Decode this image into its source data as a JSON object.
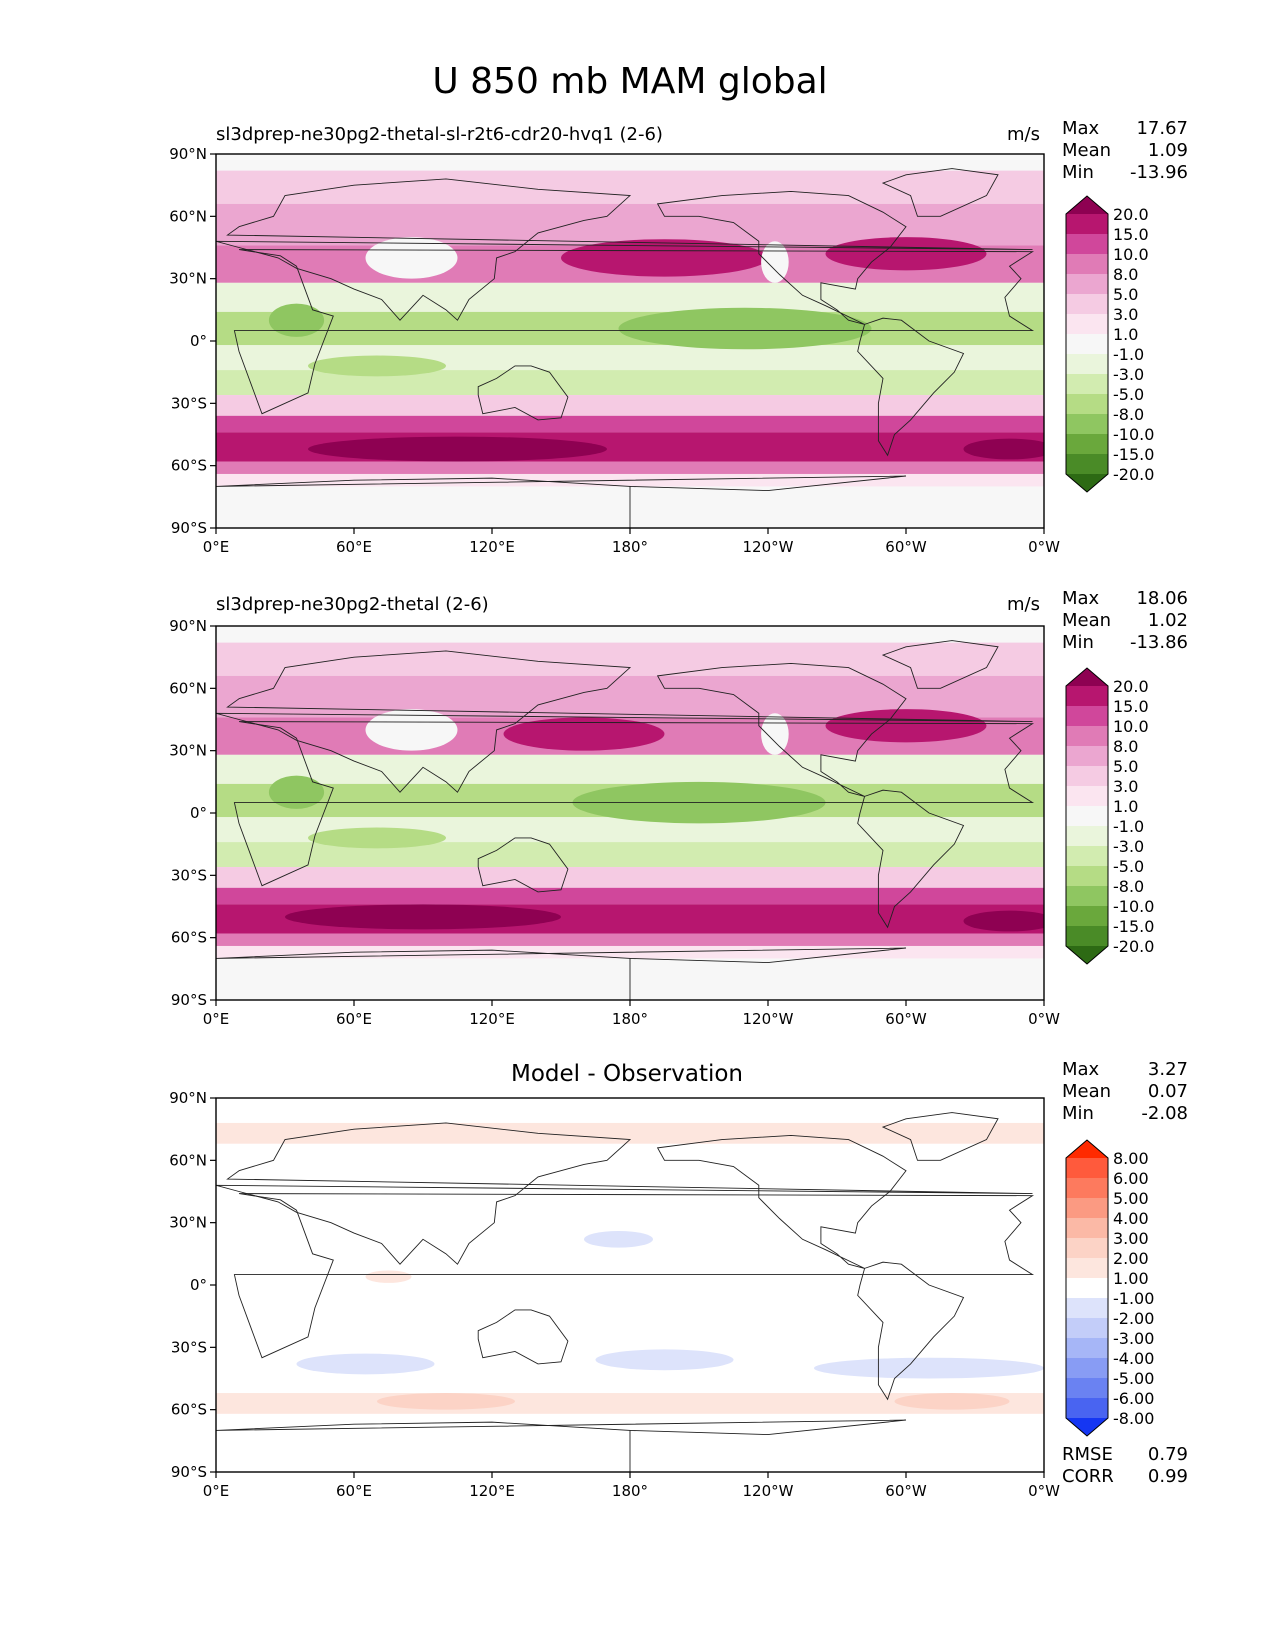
{
  "figure": {
    "title": "U 850 mb MAM global"
  },
  "chart_data": [
    {
      "type": "heatmap",
      "title": "sl3dprep-ne30pg2-thetal-sl-r2t6-cdr20-hvq1 (2-6)",
      "units": "m/s",
      "stats": {
        "labels": [
          "Max",
          "Mean",
          "Min"
        ],
        "values": [
          "17.67",
          "1.09",
          "-13.96"
        ]
      },
      "x_ticks": [
        "0°E",
        "60°E",
        "120°E",
        "180°",
        "120°W",
        "60°W",
        "0°W"
      ],
      "y_ticks": [
        "90°N",
        "60°N",
        "30°N",
        "0°",
        "30°S",
        "60°S",
        "90°S"
      ],
      "xlim": [
        0,
        360
      ],
      "ylim": [
        -90,
        90
      ],
      "colorbar": {
        "labels": [
          "20.0",
          "15.0",
          "10.0",
          "8.0",
          "5.0",
          "3.0",
          "1.0",
          "-1.0",
          "-3.0",
          "-5.0",
          "-8.0",
          "-10.0",
          "-15.0",
          "-20.0"
        ],
        "colors": [
          "#8e0152",
          "#b7166f",
          "#d0479b",
          "#e07bb6",
          "#eba6d0",
          "#f5cbe3",
          "#fbe5f0",
          "#f7f7f7",
          "#eaf5dc",
          "#d2ecb0",
          "#b5dc85",
          "#8fc661",
          "#6aa83c",
          "#4a8b27",
          "#2d6a14"
        ]
      },
      "bands": [
        {
          "lat_top": 82,
          "lat_bot": 66,
          "value": 3
        },
        {
          "lat_top": 66,
          "lat_bot": 46,
          "value": 5
        },
        {
          "lat_top": 46,
          "lat_bot": 28,
          "value": 8
        },
        {
          "lat_top": 28,
          "lat_bot": 14,
          "value": -3
        },
        {
          "lat_top": 14,
          "lat_bot": -2,
          "value": -8
        },
        {
          "lat_top": -2,
          "lat_bot": -14,
          "value": -3
        },
        {
          "lat_top": -14,
          "lat_bot": -26,
          "value": -5
        },
        {
          "lat_top": -26,
          "lat_bot": -36,
          "value": 3
        },
        {
          "lat_top": -36,
          "lat_bot": -44,
          "value": 10
        },
        {
          "lat_top": -44,
          "lat_bot": -58,
          "value": 15
        },
        {
          "lat_top": -58,
          "lat_bot": -64,
          "value": 8
        },
        {
          "lat_top": -64,
          "lat_bot": -70,
          "value": 2
        }
      ],
      "blobs": [
        {
          "lon": 195,
          "lat": 40,
          "rx": 45,
          "ry": 9,
          "value": 15
        },
        {
          "lon": 300,
          "lat": 42,
          "rx": 35,
          "ry": 8,
          "value": 15
        },
        {
          "lon": 85,
          "lat": 40,
          "rx": 20,
          "ry": 10,
          "value": 0
        },
        {
          "lon": 243,
          "lat": 38,
          "rx": 6,
          "ry": 10,
          "value": 0
        },
        {
          "lon": 230,
          "lat": 6,
          "rx": 55,
          "ry": 10,
          "value": -10
        },
        {
          "lon": 35,
          "lat": 10,
          "rx": 12,
          "ry": 8,
          "value": -10
        },
        {
          "lon": 70,
          "lat": -12,
          "rx": 30,
          "ry": 5,
          "value": -8
        },
        {
          "lon": 105,
          "lat": -52,
          "rx": 65,
          "ry": 6,
          "value": 20
        },
        {
          "lon": 345,
          "lat": -52,
          "rx": 20,
          "ry": 5,
          "value": 20
        }
      ]
    },
    {
      "type": "heatmap",
      "title": "sl3dprep-ne30pg2-thetal (2-6)",
      "units": "m/s",
      "stats": {
        "labels": [
          "Max",
          "Mean",
          "Min"
        ],
        "values": [
          "18.06",
          "1.02",
          "-13.86"
        ]
      },
      "x_ticks": [
        "0°E",
        "60°E",
        "120°E",
        "180°",
        "120°W",
        "60°W",
        "0°W"
      ],
      "y_ticks": [
        "90°N",
        "60°N",
        "30°N",
        "0°",
        "30°S",
        "60°S",
        "90°S"
      ],
      "xlim": [
        0,
        360
      ],
      "ylim": [
        -90,
        90
      ],
      "colorbar": {
        "labels": [
          "20.0",
          "15.0",
          "10.0",
          "8.0",
          "5.0",
          "3.0",
          "1.0",
          "-1.0",
          "-3.0",
          "-5.0",
          "-8.0",
          "-10.0",
          "-15.0",
          "-20.0"
        ],
        "colors": [
          "#8e0152",
          "#b7166f",
          "#d0479b",
          "#e07bb6",
          "#eba6d0",
          "#f5cbe3",
          "#fbe5f0",
          "#f7f7f7",
          "#eaf5dc",
          "#d2ecb0",
          "#b5dc85",
          "#8fc661",
          "#6aa83c",
          "#4a8b27",
          "#2d6a14"
        ]
      },
      "bands": [
        {
          "lat_top": 82,
          "lat_bot": 66,
          "value": 3
        },
        {
          "lat_top": 66,
          "lat_bot": 46,
          "value": 5
        },
        {
          "lat_top": 46,
          "lat_bot": 28,
          "value": 8
        },
        {
          "lat_top": 28,
          "lat_bot": 14,
          "value": -3
        },
        {
          "lat_top": 14,
          "lat_bot": -2,
          "value": -8
        },
        {
          "lat_top": -2,
          "lat_bot": -14,
          "value": -3
        },
        {
          "lat_top": -14,
          "lat_bot": -26,
          "value": -5
        },
        {
          "lat_top": -26,
          "lat_bot": -36,
          "value": 3
        },
        {
          "lat_top": -36,
          "lat_bot": -44,
          "value": 10
        },
        {
          "lat_top": -44,
          "lat_bot": -58,
          "value": 15
        },
        {
          "lat_top": -58,
          "lat_bot": -64,
          "value": 8
        },
        {
          "lat_top": -64,
          "lat_bot": -70,
          "value": 2
        }
      ],
      "blobs": [
        {
          "lon": 160,
          "lat": 38,
          "rx": 35,
          "ry": 8,
          "value": 15
        },
        {
          "lon": 300,
          "lat": 42,
          "rx": 35,
          "ry": 8,
          "value": 15
        },
        {
          "lon": 85,
          "lat": 40,
          "rx": 20,
          "ry": 10,
          "value": 0
        },
        {
          "lon": 243,
          "lat": 38,
          "rx": 6,
          "ry": 10,
          "value": 0
        },
        {
          "lon": 210,
          "lat": 5,
          "rx": 55,
          "ry": 10,
          "value": -10
        },
        {
          "lon": 35,
          "lat": 10,
          "rx": 12,
          "ry": 8,
          "value": -10
        },
        {
          "lon": 70,
          "lat": -12,
          "rx": 30,
          "ry": 5,
          "value": -8
        },
        {
          "lon": 90,
          "lat": -50,
          "rx": 60,
          "ry": 6,
          "value": 20
        },
        {
          "lon": 345,
          "lat": -52,
          "rx": 20,
          "ry": 5,
          "value": 20
        }
      ]
    },
    {
      "type": "heatmap",
      "title": "Model - Observation",
      "units": "",
      "stats": {
        "labels": [
          "Max",
          "Mean",
          "Min"
        ],
        "values": [
          "3.27",
          "0.07",
          "-2.08"
        ]
      },
      "metrics": {
        "labels": [
          "RMSE",
          "CORR"
        ],
        "values": [
          "0.79",
          "0.99"
        ]
      },
      "x_ticks": [
        "0°E",
        "60°E",
        "120°E",
        "180°",
        "120°W",
        "60°W",
        "0°W"
      ],
      "y_ticks": [
        "90°N",
        "60°N",
        "30°N",
        "0°",
        "30°S",
        "60°S",
        "90°S"
      ],
      "xlim": [
        0,
        360
      ],
      "ylim": [
        -90,
        90
      ],
      "colorbar": {
        "labels": [
          "8.00",
          "6.00",
          "5.00",
          "4.00",
          "3.00",
          "2.00",
          "1.00",
          "-1.00",
          "-2.00",
          "-3.00",
          "-4.00",
          "-5.00",
          "-6.00",
          "-8.00"
        ],
        "colors": [
          "#ff2a00",
          "#ff5a3c",
          "#fd7a5e",
          "#fb9a82",
          "#fbb9a6",
          "#fcd3c6",
          "#fde6de",
          "#ffffff",
          "#dde3fb",
          "#c3cdf9",
          "#a6b6f7",
          "#889cf4",
          "#6a82f2",
          "#4964f1",
          "#1536f3"
        ]
      },
      "bands": [
        {
          "lat_top": 78,
          "lat_bot": 68,
          "value": 1.5
        },
        {
          "lat_top": -52,
          "lat_bot": -62,
          "value": 1.5
        }
      ],
      "blobs": [
        {
          "lon": 195,
          "lat": -36,
          "rx": 30,
          "ry": 5,
          "value": -1.5
        },
        {
          "lon": 310,
          "lat": -40,
          "rx": 50,
          "ry": 5,
          "value": -1.5
        },
        {
          "lon": 65,
          "lat": -38,
          "rx": 30,
          "ry": 5,
          "value": -1.5
        },
        {
          "lon": 175,
          "lat": 22,
          "rx": 15,
          "ry": 4,
          "value": -1.5
        },
        {
          "lon": 100,
          "lat": -56,
          "rx": 30,
          "ry": 4,
          "value": 2.5
        },
        {
          "lon": 320,
          "lat": -56,
          "rx": 25,
          "ry": 4,
          "value": 2.5
        },
        {
          "lon": 75,
          "lat": 4,
          "rx": 10,
          "ry": 3,
          "value": 1.5
        }
      ]
    }
  ]
}
